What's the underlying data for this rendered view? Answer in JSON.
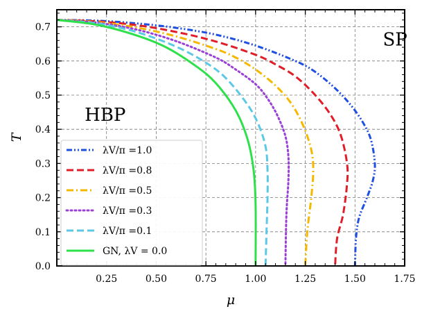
{
  "chart_data": {
    "type": "line",
    "xlabel": "μ",
    "ylabel": "T",
    "xlim": [
      0,
      1.75
    ],
    "ylim": [
      0,
      0.75
    ],
    "x_ticks": [
      "0.25",
      "0.50",
      "0.75",
      "1.00",
      "1.25",
      "1.50",
      "1.75"
    ],
    "y_ticks": [
      "0.0",
      "0.1",
      "0.2",
      "0.3",
      "0.4",
      "0.5",
      "0.6",
      "0.7"
    ],
    "grid": true,
    "legend_position": "bottom-left",
    "annotations": [
      {
        "text": "HBP",
        "x": 0.14,
        "y": 0.425
      },
      {
        "text": "SP",
        "x": 1.64,
        "y": 0.645
      }
    ],
    "series": [
      {
        "name": "λV/π =1.0",
        "color": "#1f4fe0",
        "style": "dashdotdot",
        "points": [
          [
            0,
            0.72
          ],
          [
            0.2,
            0.718
          ],
          [
            0.4,
            0.71
          ],
          [
            0.6,
            0.697
          ],
          [
            0.8,
            0.677
          ],
          [
            1.0,
            0.645
          ],
          [
            1.2,
            0.6
          ],
          [
            1.3,
            0.568
          ],
          [
            1.4,
            0.52
          ],
          [
            1.48,
            0.47
          ],
          [
            1.54,
            0.42
          ],
          [
            1.58,
            0.37
          ],
          [
            1.6,
            0.3
          ],
          [
            1.59,
            0.25
          ],
          [
            1.56,
            0.2
          ],
          [
            1.52,
            0.14
          ],
          [
            1.505,
            0.08
          ],
          [
            1.5,
            0.0
          ]
        ]
      },
      {
        "name": "λV/π =0.8",
        "color": "#e01e2a",
        "style": "dashed",
        "points": [
          [
            0,
            0.72
          ],
          [
            0.2,
            0.716
          ],
          [
            0.4,
            0.705
          ],
          [
            0.6,
            0.685
          ],
          [
            0.8,
            0.657
          ],
          [
            1.0,
            0.618
          ],
          [
            1.1,
            0.59
          ],
          [
            1.2,
            0.555
          ],
          [
            1.3,
            0.5
          ],
          [
            1.38,
            0.44
          ],
          [
            1.43,
            0.38
          ],
          [
            1.46,
            0.3
          ],
          [
            1.46,
            0.24
          ],
          [
            1.44,
            0.15
          ],
          [
            1.41,
            0.08
          ],
          [
            1.4,
            0.0
          ]
        ]
      },
      {
        "name": "λV/π =0.5",
        "color": "#f5b800",
        "style": "dashdot",
        "points": [
          [
            0,
            0.72
          ],
          [
            0.2,
            0.714
          ],
          [
            0.4,
            0.698
          ],
          [
            0.6,
            0.672
          ],
          [
            0.8,
            0.635
          ],
          [
            0.9,
            0.61
          ],
          [
            1.0,
            0.575
          ],
          [
            1.1,
            0.528
          ],
          [
            1.18,
            0.475
          ],
          [
            1.24,
            0.41
          ],
          [
            1.28,
            0.34
          ],
          [
            1.29,
            0.28
          ],
          [
            1.28,
            0.2
          ],
          [
            1.26,
            0.1
          ],
          [
            1.25,
            0.0
          ]
        ]
      },
      {
        "name": "λV/π =0.3",
        "color": "#9b3fd9",
        "style": "dotted",
        "points": [
          [
            0,
            0.72
          ],
          [
            0.2,
            0.712
          ],
          [
            0.4,
            0.692
          ],
          [
            0.6,
            0.658
          ],
          [
            0.8,
            0.61
          ],
          [
            0.9,
            0.575
          ],
          [
            1.0,
            0.532
          ],
          [
            1.06,
            0.49
          ],
          [
            1.11,
            0.44
          ],
          [
            1.15,
            0.38
          ],
          [
            1.165,
            0.32
          ],
          [
            1.165,
            0.25
          ],
          [
            1.155,
            0.15
          ],
          [
            1.15,
            0.0
          ]
        ]
      },
      {
        "name": "λV/π =0.1",
        "color": "#5bc8e6",
        "style": "dashed",
        "points": [
          [
            0,
            0.72
          ],
          [
            0.2,
            0.71
          ],
          [
            0.4,
            0.685
          ],
          [
            0.6,
            0.642
          ],
          [
            0.75,
            0.595
          ],
          [
            0.85,
            0.55
          ],
          [
            0.95,
            0.48
          ],
          [
            1.01,
            0.42
          ],
          [
            1.05,
            0.35
          ],
          [
            1.06,
            0.28
          ],
          [
            1.06,
            0.2
          ],
          [
            1.055,
            0.1
          ],
          [
            1.05,
            0.0
          ]
        ]
      },
      {
        "name": "GN, λV = 0.0",
        "color": "#2ee04a",
        "style": "solid",
        "points": [
          [
            0,
            0.72
          ],
          [
            0.2,
            0.706
          ],
          [
            0.4,
            0.675
          ],
          [
            0.55,
            0.64
          ],
          [
            0.7,
            0.585
          ],
          [
            0.8,
            0.535
          ],
          [
            0.9,
            0.455
          ],
          [
            0.96,
            0.37
          ],
          [
            0.99,
            0.28
          ],
          [
            1.0,
            0.18
          ],
          [
            1.0,
            0.0
          ]
        ]
      }
    ]
  }
}
